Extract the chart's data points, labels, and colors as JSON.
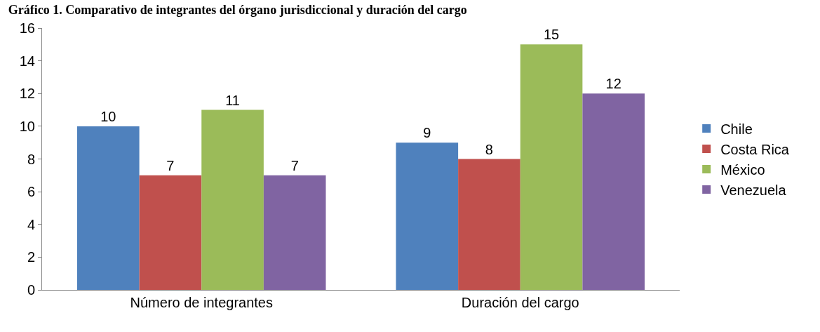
{
  "chart_data": {
    "type": "bar",
    "title": "Gráfico 1. Comparativo de integrantes del órgano jurisdiccional y duración del cargo",
    "categories": [
      "Número de integrantes",
      "Duración del cargo"
    ],
    "series": [
      {
        "name": "Chile",
        "color": "#4f81bd",
        "values": [
          10,
          9
        ]
      },
      {
        "name": "Costa Rica",
        "color": "#c0504d",
        "values": [
          7,
          8
        ]
      },
      {
        "name": "México",
        "color": "#9bbb59",
        "values": [
          11,
          15
        ]
      },
      {
        "name": "Venezuela",
        "color": "#8064a2",
        "values": [
          7,
          12
        ]
      }
    ],
    "ylim": [
      0,
      16
    ],
    "yticks": [
      0,
      2,
      4,
      6,
      8,
      10,
      12,
      14,
      16
    ],
    "legend": "right",
    "data_labels": true
  }
}
